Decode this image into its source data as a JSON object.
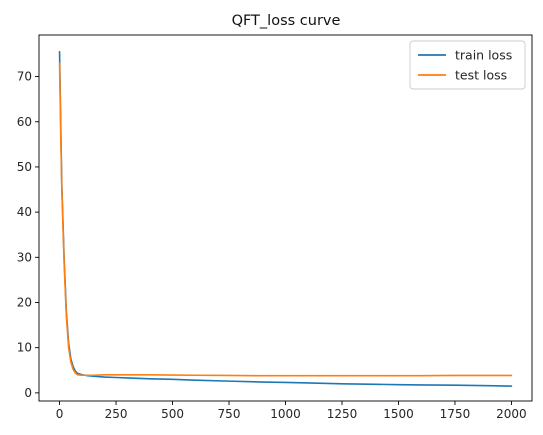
{
  "chart_data": {
    "type": "line",
    "title": "QFT_loss curve",
    "xlabel": "",
    "ylabel": "",
    "xlim": [
      -91,
      2091
    ],
    "ylim": [
      -1.8,
      79.2
    ],
    "xticks": [
      0,
      250,
      500,
      750,
      1000,
      1250,
      1500,
      1750,
      2000
    ],
    "xtick_labels": [
      "0",
      "250",
      "500",
      "750",
      "1000",
      "1250",
      "1500",
      "1750",
      "2000"
    ],
    "yticks": [
      0,
      10,
      20,
      30,
      40,
      50,
      60,
      70
    ],
    "ytick_labels": [
      "0",
      "10",
      "20",
      "30",
      "40",
      "50",
      "60",
      "70"
    ],
    "grid": false,
    "legend_position": "top-right",
    "colors": {
      "train": "#1f77b4",
      "test": "#ff7f0e"
    },
    "series": [
      {
        "name": "train loss",
        "color": "#1f77b4",
        "x": [
          0,
          5,
          10,
          20,
          30,
          40,
          50,
          60,
          70,
          80,
          100,
          125,
          150,
          200,
          250,
          300,
          400,
          500,
          600,
          750,
          900,
          1000,
          1100,
          1250,
          1400,
          1500,
          1600,
          1750,
          1900,
          2000
        ],
        "y": [
          75.5,
          60.0,
          46.0,
          30.0,
          18.0,
          11.0,
          7.5,
          5.8,
          4.8,
          4.3,
          4.0,
          3.8,
          3.7,
          3.5,
          3.4,
          3.3,
          3.1,
          3.0,
          2.8,
          2.6,
          2.4,
          2.3,
          2.2,
          2.0,
          1.9,
          1.8,
          1.75,
          1.7,
          1.6,
          1.5
        ]
      },
      {
        "name": "test loss",
        "color": "#ff7f0e",
        "x": [
          0,
          5,
          10,
          20,
          30,
          40,
          50,
          60,
          70,
          80,
          100,
          125,
          150,
          200,
          250,
          300,
          400,
          500,
          600,
          750,
          900,
          1000,
          1100,
          1250,
          1400,
          1500,
          1600,
          1750,
          1900,
          2000
        ],
        "y": [
          73.0,
          58.0,
          45.0,
          29.0,
          17.0,
          10.0,
          6.8,
          5.2,
          4.4,
          4.0,
          3.9,
          3.9,
          3.9,
          4.0,
          4.0,
          4.0,
          4.0,
          3.95,
          3.9,
          3.85,
          3.8,
          3.8,
          3.8,
          3.8,
          3.8,
          3.8,
          3.8,
          3.85,
          3.85,
          3.85
        ]
      }
    ]
  }
}
